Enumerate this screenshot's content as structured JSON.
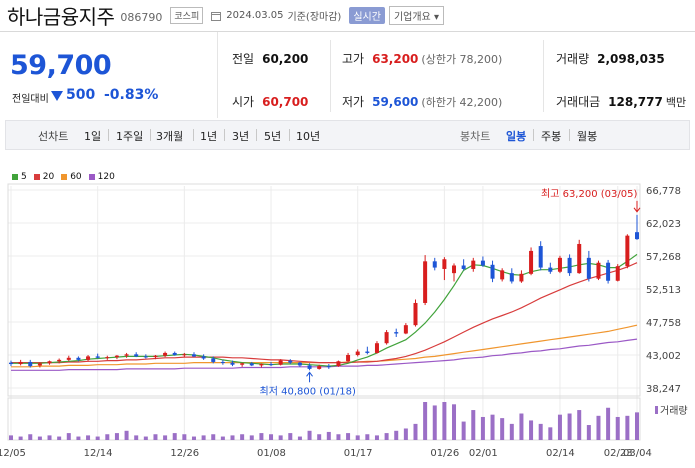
{
  "header": {
    "name": "하나금융지주",
    "code": "086790",
    "market": "코스피",
    "date": "2024.03.05",
    "basis": "기준(장마감)",
    "live_label": "실시간",
    "info_label": "기업개요"
  },
  "price": {
    "current": "59,700",
    "compare_label": "전일대비",
    "change": "500",
    "change_pct": "-0.83%",
    "direction": "down"
  },
  "stats": {
    "prev_label": "전일",
    "prev_value": "60,200",
    "open_label": "시가",
    "open_value": "60,700",
    "high_label": "고가",
    "high_value": "63,200",
    "upper_limit": "(상한가 78,200)",
    "low_label": "저가",
    "low_value": "59,600",
    "lower_limit": "(하한가 42,200)",
    "volume_label": "거래량",
    "volume_value": "2,098,035",
    "amount_label": "거래대금",
    "amount_value": "128,777",
    "amount_unit": "백만"
  },
  "periods": {
    "line_label": "선차트",
    "line_options": [
      "1일",
      "1주일",
      "3개월",
      "1년",
      "3년",
      "5년",
      "10년"
    ],
    "candle_label": "봉차트",
    "candle_options": [
      "일봉",
      "주봉",
      "월봉"
    ],
    "candle_selected": "일봉"
  },
  "colors": {
    "up": "#d81e1e",
    "down": "#1d55d6",
    "ma5": "#41a33b",
    "ma20": "#d83c3c",
    "ma60": "#f0962e",
    "ma120": "#9b59c6",
    "volume": "#9b6fc6"
  },
  "chart_data": {
    "type": "candlestick",
    "legend": [
      "5",
      "20",
      "60",
      "120"
    ],
    "y_ticks": [
      "66,778",
      "62,023",
      "57,268",
      "52,513",
      "47,758",
      "43,002",
      "38,247"
    ],
    "ylim": [
      38247,
      66778
    ],
    "x_ticks": [
      "12/05",
      "12/14",
      "12/26",
      "01/08",
      "01/17",
      "01/26",
      "02/01",
      "02/14",
      "02/23",
      "03/04"
    ],
    "high_annotation": "최고 63,200 (03/05)",
    "low_annotation": "최저 40,800 (01/18)",
    "volume_label": "거래량",
    "candles": [
      {
        "o": 41900,
        "h": 42200,
        "l": 41400,
        "c": 41700
      },
      {
        "o": 41700,
        "h": 42300,
        "l": 41500,
        "c": 42000
      },
      {
        "o": 42000,
        "h": 42300,
        "l": 41200,
        "c": 41400
      },
      {
        "o": 41500,
        "h": 41900,
        "l": 41200,
        "c": 41800
      },
      {
        "o": 41800,
        "h": 42200,
        "l": 41600,
        "c": 42100
      },
      {
        "o": 42100,
        "h": 42500,
        "l": 41800,
        "c": 42300
      },
      {
        "o": 42300,
        "h": 42900,
        "l": 42100,
        "c": 42600
      },
      {
        "o": 42600,
        "h": 42800,
        "l": 42100,
        "c": 42300
      },
      {
        "o": 42300,
        "h": 43000,
        "l": 42100,
        "c": 42800
      },
      {
        "o": 42800,
        "h": 43200,
        "l": 42500,
        "c": 42600
      },
      {
        "o": 42600,
        "h": 42900,
        "l": 42300,
        "c": 42700
      },
      {
        "o": 42700,
        "h": 43000,
        "l": 42400,
        "c": 42900
      },
      {
        "o": 42900,
        "h": 43300,
        "l": 42600,
        "c": 43100
      },
      {
        "o": 43100,
        "h": 43400,
        "l": 42700,
        "c": 42800
      },
      {
        "o": 42800,
        "h": 43100,
        "l": 42500,
        "c": 42700
      },
      {
        "o": 42700,
        "h": 43000,
        "l": 42400,
        "c": 42900
      },
      {
        "o": 42900,
        "h": 43500,
        "l": 42700,
        "c": 43300
      },
      {
        "o": 43300,
        "h": 43500,
        "l": 42900,
        "c": 43000
      },
      {
        "o": 43000,
        "h": 43300,
        "l": 42700,
        "c": 43100
      },
      {
        "o": 43100,
        "h": 43400,
        "l": 42700,
        "c": 42800
      },
      {
        "o": 42800,
        "h": 43100,
        "l": 42300,
        "c": 42500
      },
      {
        "o": 42500,
        "h": 42800,
        "l": 41800,
        "c": 42000
      },
      {
        "o": 42000,
        "h": 42300,
        "l": 41600,
        "c": 41900
      },
      {
        "o": 41900,
        "h": 42200,
        "l": 41400,
        "c": 41600
      },
      {
        "o": 41600,
        "h": 41900,
        "l": 41300,
        "c": 41800
      },
      {
        "o": 41800,
        "h": 42000,
        "l": 41400,
        "c": 41500
      },
      {
        "o": 41500,
        "h": 41800,
        "l": 41200,
        "c": 41700
      },
      {
        "o": 41700,
        "h": 42000,
        "l": 41400,
        "c": 41600
      },
      {
        "o": 41600,
        "h": 42400,
        "l": 41500,
        "c": 42200
      },
      {
        "o": 42200,
        "h": 42400,
        "l": 41700,
        "c": 41900
      },
      {
        "o": 41900,
        "h": 42000,
        "l": 41300,
        "c": 41500
      },
      {
        "o": 41500,
        "h": 41800,
        "l": 40800,
        "c": 41000
      },
      {
        "o": 41000,
        "h": 41600,
        "l": 40900,
        "c": 41400
      },
      {
        "o": 41400,
        "h": 41700,
        "l": 41000,
        "c": 41300
      },
      {
        "o": 41400,
        "h": 42200,
        "l": 41300,
        "c": 42100
      },
      {
        "o": 42100,
        "h": 43300,
        "l": 42000,
        "c": 43000
      },
      {
        "o": 43000,
        "h": 43800,
        "l": 42800,
        "c": 43500
      },
      {
        "o": 43500,
        "h": 44200,
        "l": 43100,
        "c": 43300
      },
      {
        "o": 43300,
        "h": 45000,
        "l": 43200,
        "c": 44700
      },
      {
        "o": 44700,
        "h": 46600,
        "l": 44500,
        "c": 46300
      },
      {
        "o": 46300,
        "h": 46800,
        "l": 45600,
        "c": 46100
      },
      {
        "o": 46100,
        "h": 47600,
        "l": 46000,
        "c": 47300
      },
      {
        "o": 47300,
        "h": 51000,
        "l": 47100,
        "c": 50500
      },
      {
        "o": 50500,
        "h": 57400,
        "l": 50200,
        "c": 56500
      },
      {
        "o": 56500,
        "h": 57000,
        "l": 55200,
        "c": 55600
      },
      {
        "o": 55400,
        "h": 57100,
        "l": 53800,
        "c": 56800
      },
      {
        "o": 54800,
        "h": 56200,
        "l": 53600,
        "c": 55900
      },
      {
        "o": 55900,
        "h": 56800,
        "l": 55200,
        "c": 55400
      },
      {
        "o": 55400,
        "h": 57000,
        "l": 55000,
        "c": 56600
      },
      {
        "o": 56600,
        "h": 57200,
        "l": 55700,
        "c": 55900
      },
      {
        "o": 56000,
        "h": 56600,
        "l": 53500,
        "c": 54000
      },
      {
        "o": 53900,
        "h": 55500,
        "l": 53600,
        "c": 55200
      },
      {
        "o": 54800,
        "h": 55500,
        "l": 53300,
        "c": 53600
      },
      {
        "o": 53600,
        "h": 55200,
        "l": 53400,
        "c": 54700
      },
      {
        "o": 54700,
        "h": 58500,
        "l": 54500,
        "c": 58000
      },
      {
        "o": 58700,
        "h": 59400,
        "l": 55200,
        "c": 55600
      },
      {
        "o": 55600,
        "h": 56300,
        "l": 54700,
        "c": 55000
      },
      {
        "o": 55000,
        "h": 57300,
        "l": 54800,
        "c": 57000
      },
      {
        "o": 57000,
        "h": 57500,
        "l": 54400,
        "c": 54800
      },
      {
        "o": 54800,
        "h": 59600,
        "l": 54700,
        "c": 59000
      },
      {
        "o": 57000,
        "h": 58000,
        "l": 53600,
        "c": 54000
      },
      {
        "o": 54000,
        "h": 56600,
        "l": 53800,
        "c": 56300
      },
      {
        "o": 56300,
        "h": 56700,
        "l": 53300,
        "c": 53700
      },
      {
        "o": 53700,
        "h": 56100,
        "l": 53600,
        "c": 55800
      },
      {
        "o": 55800,
        "h": 60400,
        "l": 55500,
        "c": 60200
      },
      {
        "o": 60700,
        "h": 63200,
        "l": 59600,
        "c": 59700
      }
    ],
    "ma5": [
      41800,
      41800,
      41800,
      41800,
      41900,
      42000,
      42100,
      42200,
      42400,
      42500,
      42600,
      42700,
      42800,
      42800,
      42800,
      42800,
      42900,
      43000,
      43100,
      43000,
      42800,
      42600,
      42300,
      42100,
      41900,
      41800,
      41700,
      41600,
      41700,
      41700,
      41700,
      41600,
      41500,
      41400,
      41500,
      41800,
      42300,
      42700,
      43300,
      44000,
      44600,
      45200,
      46300,
      47600,
      49200,
      51000,
      53000,
      55200,
      56000,
      55900,
      55500,
      55000,
      54600,
      54500,
      55000,
      55300,
      55300,
      55500,
      55700,
      56000,
      56200,
      56000,
      55600,
      55600,
      56500,
      57500
    ],
    "ma20": [
      41900,
      41900,
      41900,
      41900,
      41900,
      41900,
      42000,
      42000,
      42100,
      42100,
      42200,
      42200,
      42300,
      42300,
      42400,
      42500,
      42600,
      42600,
      42700,
      42700,
      42700,
      42700,
      42700,
      42600,
      42600,
      42500,
      42400,
      42300,
      42300,
      42200,
      42100,
      42000,
      41900,
      41900,
      41900,
      41900,
      42000,
      42000,
      42100,
      42300,
      42500,
      42800,
      43200,
      43700,
      44300,
      44900,
      45600,
      46300,
      47000,
      47600,
      48200,
      48700,
      49200,
      49800,
      50500,
      51200,
      51800,
      52400,
      53000,
      53500,
      54000,
      54400,
      54800,
      55200,
      55700,
      56300
    ],
    "ma60": [
      41300,
      41300,
      41300,
      41400,
      41400,
      41400,
      41500,
      41500,
      41500,
      41600,
      41600,
      41600,
      41700,
      41700,
      41700,
      41800,
      41800,
      41800,
      41800,
      41900,
      41900,
      41900,
      41900,
      41900,
      41900,
      41900,
      41900,
      41900,
      41900,
      41900,
      41900,
      41900,
      41900,
      41900,
      41900,
      42000,
      42000,
      42100,
      42100,
      42200,
      42300,
      42400,
      42500,
      42700,
      42800,
      43000,
      43200,
      43400,
      43600,
      43800,
      44000,
      44200,
      44400,
      44600,
      44800,
      45000,
      45200,
      45400,
      45600,
      45800,
      46000,
      46200,
      46400,
      46700,
      47000,
      47300
    ],
    "ma120": [
      40800,
      40800,
      40800,
      40800,
      40800,
      40800,
      40900,
      40900,
      40900,
      40900,
      40900,
      40900,
      41000,
      41000,
      41000,
      41000,
      41000,
      41000,
      41100,
      41100,
      41100,
      41100,
      41100,
      41100,
      41200,
      41200,
      41200,
      41200,
      41200,
      41300,
      41300,
      41300,
      41300,
      41300,
      41400,
      41400,
      41400,
      41500,
      41500,
      41600,
      41700,
      41800,
      41900,
      42000,
      42100,
      42200,
      42300,
      42500,
      42600,
      42700,
      42900,
      43000,
      43200,
      43300,
      43500,
      43600,
      43800,
      43900,
      44100,
      44300,
      44400,
      44600,
      44800,
      44900,
      45100,
      45300
    ],
    "volume": [
      4,
      3,
      5,
      3,
      4,
      3,
      6,
      3,
      4,
      3,
      5,
      6,
      8,
      4,
      3,
      5,
      4,
      6,
      5,
      3,
      4,
      5,
      3,
      4,
      5,
      4,
      6,
      5,
      4,
      6,
      3,
      8,
      5,
      7,
      5,
      6,
      4,
      5,
      4,
      6,
      8,
      10,
      14,
      33,
      30,
      33,
      31,
      16,
      26,
      20,
      22,
      19,
      14,
      23,
      17,
      14,
      11,
      22,
      23,
      26,
      13,
      21,
      28,
      20,
      21,
      24
    ]
  }
}
